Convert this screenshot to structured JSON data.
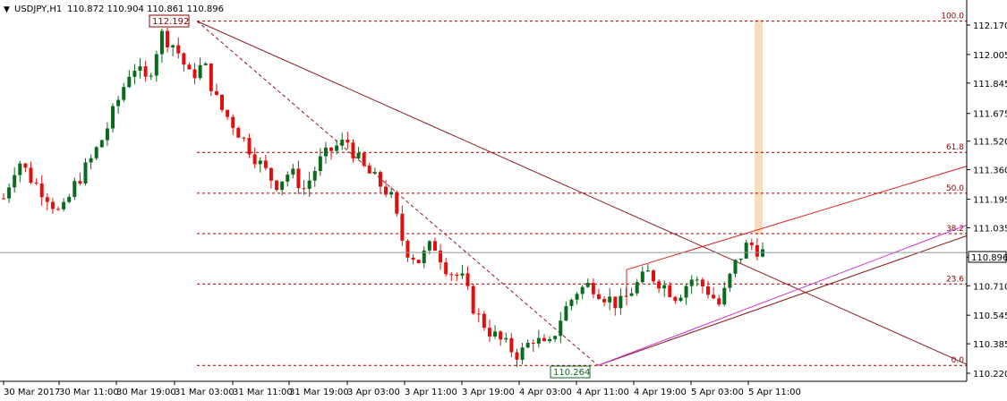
{
  "header": {
    "symbol_timeframe": "USDJPY,H1",
    "ohlc": "110.872 110.904 110.861 110.896",
    "menu_glyph": "▼"
  },
  "price_axis": {
    "labels": [
      "112.170",
      "112.005",
      "111.845",
      "111.675",
      "111.520",
      "111.360",
      "111.195",
      "111.035",
      "110.870",
      "110.710",
      "110.545",
      "110.385",
      "110.220"
    ],
    "current_price": "110.896"
  },
  "time_axis": {
    "labels": [
      "30 Mar 2017",
      "30 Mar 11:00",
      "30 Mar 19:00",
      "31 Mar 03:00",
      "31 Mar 11:00",
      "31 Mar 19:00",
      "3 Apr 03:00",
      "3 Apr 11:00",
      "3 Apr 19:00",
      "4 Apr 03:00",
      "4 Apr 11:00",
      "4 Apr 19:00",
      "5 Apr 03:00",
      "5 Apr 11:00"
    ]
  },
  "fibonacci": {
    "levels": [
      {
        "label": "100.0",
        "price": 112.192
      },
      {
        "label": "61.8",
        "price": 111.457
      },
      {
        "label": "50.0",
        "price": 111.228
      },
      {
        "label": "38.2",
        "price": 111.002
      },
      {
        "label": "23.6",
        "price": 110.72
      },
      {
        "label": "0.0",
        "price": 110.264
      }
    ],
    "high_label": "112.192",
    "low_label": "110.264"
  },
  "colors": {
    "bull": "#0a6b1e",
    "bear": "#e01010",
    "fib": "#8b0000",
    "trendline": "#8b1a1a",
    "channel_upper": "#dd2222",
    "channel_purple": "#cc33cc",
    "highlight": "#f9d9b0",
    "grid_text": "#000000"
  },
  "chart_data": {
    "type": "candlestick",
    "symbol": "USDJPY",
    "timeframe": "H1",
    "ylim": [
      110.22,
      112.25
    ],
    "y_ticks": [
      112.17,
      112.005,
      111.845,
      111.675,
      111.52,
      111.36,
      111.195,
      111.035,
      110.87,
      110.71,
      110.545,
      110.385,
      110.22
    ],
    "x_ticks": [
      "30 Mar 2017",
      "30 Mar 11:00",
      "30 Mar 19:00",
      "31 Mar 03:00",
      "31 Mar 11:00",
      "31 Mar 19:00",
      "3 Apr 03:00",
      "3 Apr 11:00",
      "3 Apr 19:00",
      "4 Apr 03:00",
      "4 Apr 11:00",
      "4 Apr 19:00",
      "5 Apr 03:00",
      "5 Apr 11:00"
    ],
    "close_path": [
      111.2,
      111.42,
      111.3,
      111.22,
      111.1,
      111.28,
      111.4,
      111.55,
      111.75,
      111.95,
      111.85,
      112.12,
      112.05,
      111.88,
      111.95,
      111.72,
      111.62,
      111.5,
      111.38,
      111.28,
      111.35,
      111.25,
      111.4,
      111.48,
      111.52,
      111.38,
      111.3,
      111.22,
      110.92,
      110.85,
      110.95,
      110.8,
      110.75,
      110.55,
      110.45,
      110.38,
      110.32,
      110.42,
      110.35,
      110.55,
      110.68,
      110.72,
      110.65,
      110.6,
      110.7,
      110.78,
      110.72,
      110.65,
      110.75,
      110.7,
      110.6,
      110.82,
      110.95,
      110.896
    ],
    "last_close": 110.896
  }
}
